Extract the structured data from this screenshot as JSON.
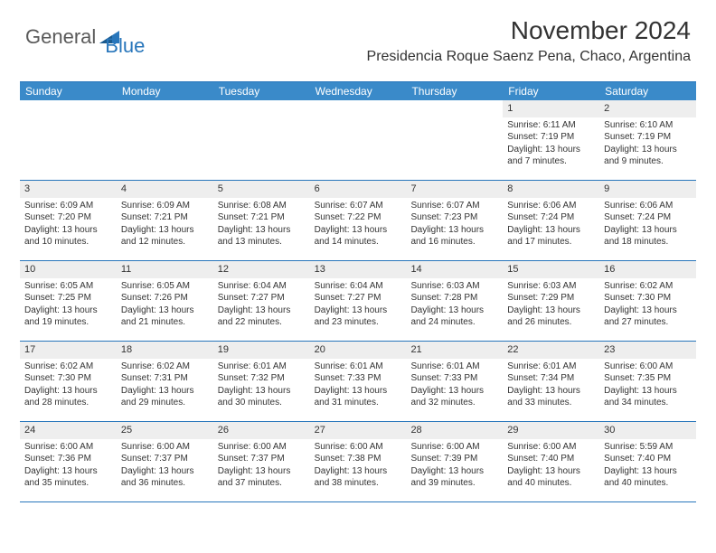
{
  "logo": {
    "text1": "General",
    "text2": "Blue"
  },
  "title": "November 2024",
  "location": "Presidencia Roque Saenz Pena, Chaco, Argentina",
  "colors": {
    "header_bg": "#3a8ac9",
    "border": "#2876bb",
    "daynum_bg": "#eeeeee",
    "text": "#333333",
    "logo_gray": "#5a5a5a",
    "logo_blue": "#2876bb"
  },
  "dayHeaders": [
    "Sunday",
    "Monday",
    "Tuesday",
    "Wednesday",
    "Thursday",
    "Friday",
    "Saturday"
  ],
  "weeks": [
    [
      {
        "empty": true
      },
      {
        "empty": true
      },
      {
        "empty": true
      },
      {
        "empty": true
      },
      {
        "empty": true
      },
      {
        "num": "1",
        "sunrise": "Sunrise: 6:11 AM",
        "sunset": "Sunset: 7:19 PM",
        "daylight": "Daylight: 13 hours and 7 minutes."
      },
      {
        "num": "2",
        "sunrise": "Sunrise: 6:10 AM",
        "sunset": "Sunset: 7:19 PM",
        "daylight": "Daylight: 13 hours and 9 minutes."
      }
    ],
    [
      {
        "num": "3",
        "sunrise": "Sunrise: 6:09 AM",
        "sunset": "Sunset: 7:20 PM",
        "daylight": "Daylight: 13 hours and 10 minutes."
      },
      {
        "num": "4",
        "sunrise": "Sunrise: 6:09 AM",
        "sunset": "Sunset: 7:21 PM",
        "daylight": "Daylight: 13 hours and 12 minutes."
      },
      {
        "num": "5",
        "sunrise": "Sunrise: 6:08 AM",
        "sunset": "Sunset: 7:21 PM",
        "daylight": "Daylight: 13 hours and 13 minutes."
      },
      {
        "num": "6",
        "sunrise": "Sunrise: 6:07 AM",
        "sunset": "Sunset: 7:22 PM",
        "daylight": "Daylight: 13 hours and 14 minutes."
      },
      {
        "num": "7",
        "sunrise": "Sunrise: 6:07 AM",
        "sunset": "Sunset: 7:23 PM",
        "daylight": "Daylight: 13 hours and 16 minutes."
      },
      {
        "num": "8",
        "sunrise": "Sunrise: 6:06 AM",
        "sunset": "Sunset: 7:24 PM",
        "daylight": "Daylight: 13 hours and 17 minutes."
      },
      {
        "num": "9",
        "sunrise": "Sunrise: 6:06 AM",
        "sunset": "Sunset: 7:24 PM",
        "daylight": "Daylight: 13 hours and 18 minutes."
      }
    ],
    [
      {
        "num": "10",
        "sunrise": "Sunrise: 6:05 AM",
        "sunset": "Sunset: 7:25 PM",
        "daylight": "Daylight: 13 hours and 19 minutes."
      },
      {
        "num": "11",
        "sunrise": "Sunrise: 6:05 AM",
        "sunset": "Sunset: 7:26 PM",
        "daylight": "Daylight: 13 hours and 21 minutes."
      },
      {
        "num": "12",
        "sunrise": "Sunrise: 6:04 AM",
        "sunset": "Sunset: 7:27 PM",
        "daylight": "Daylight: 13 hours and 22 minutes."
      },
      {
        "num": "13",
        "sunrise": "Sunrise: 6:04 AM",
        "sunset": "Sunset: 7:27 PM",
        "daylight": "Daylight: 13 hours and 23 minutes."
      },
      {
        "num": "14",
        "sunrise": "Sunrise: 6:03 AM",
        "sunset": "Sunset: 7:28 PM",
        "daylight": "Daylight: 13 hours and 24 minutes."
      },
      {
        "num": "15",
        "sunrise": "Sunrise: 6:03 AM",
        "sunset": "Sunset: 7:29 PM",
        "daylight": "Daylight: 13 hours and 26 minutes."
      },
      {
        "num": "16",
        "sunrise": "Sunrise: 6:02 AM",
        "sunset": "Sunset: 7:30 PM",
        "daylight": "Daylight: 13 hours and 27 minutes."
      }
    ],
    [
      {
        "num": "17",
        "sunrise": "Sunrise: 6:02 AM",
        "sunset": "Sunset: 7:30 PM",
        "daylight": "Daylight: 13 hours and 28 minutes."
      },
      {
        "num": "18",
        "sunrise": "Sunrise: 6:02 AM",
        "sunset": "Sunset: 7:31 PM",
        "daylight": "Daylight: 13 hours and 29 minutes."
      },
      {
        "num": "19",
        "sunrise": "Sunrise: 6:01 AM",
        "sunset": "Sunset: 7:32 PM",
        "daylight": "Daylight: 13 hours and 30 minutes."
      },
      {
        "num": "20",
        "sunrise": "Sunrise: 6:01 AM",
        "sunset": "Sunset: 7:33 PM",
        "daylight": "Daylight: 13 hours and 31 minutes."
      },
      {
        "num": "21",
        "sunrise": "Sunrise: 6:01 AM",
        "sunset": "Sunset: 7:33 PM",
        "daylight": "Daylight: 13 hours and 32 minutes."
      },
      {
        "num": "22",
        "sunrise": "Sunrise: 6:01 AM",
        "sunset": "Sunset: 7:34 PM",
        "daylight": "Daylight: 13 hours and 33 minutes."
      },
      {
        "num": "23",
        "sunrise": "Sunrise: 6:00 AM",
        "sunset": "Sunset: 7:35 PM",
        "daylight": "Daylight: 13 hours and 34 minutes."
      }
    ],
    [
      {
        "num": "24",
        "sunrise": "Sunrise: 6:00 AM",
        "sunset": "Sunset: 7:36 PM",
        "daylight": "Daylight: 13 hours and 35 minutes."
      },
      {
        "num": "25",
        "sunrise": "Sunrise: 6:00 AM",
        "sunset": "Sunset: 7:37 PM",
        "daylight": "Daylight: 13 hours and 36 minutes."
      },
      {
        "num": "26",
        "sunrise": "Sunrise: 6:00 AM",
        "sunset": "Sunset: 7:37 PM",
        "daylight": "Daylight: 13 hours and 37 minutes."
      },
      {
        "num": "27",
        "sunrise": "Sunrise: 6:00 AM",
        "sunset": "Sunset: 7:38 PM",
        "daylight": "Daylight: 13 hours and 38 minutes."
      },
      {
        "num": "28",
        "sunrise": "Sunrise: 6:00 AM",
        "sunset": "Sunset: 7:39 PM",
        "daylight": "Daylight: 13 hours and 39 minutes."
      },
      {
        "num": "29",
        "sunrise": "Sunrise: 6:00 AM",
        "sunset": "Sunset: 7:40 PM",
        "daylight": "Daylight: 13 hours and 40 minutes."
      },
      {
        "num": "30",
        "sunrise": "Sunrise: 5:59 AM",
        "sunset": "Sunset: 7:40 PM",
        "daylight": "Daylight: 13 hours and 40 minutes."
      }
    ]
  ]
}
